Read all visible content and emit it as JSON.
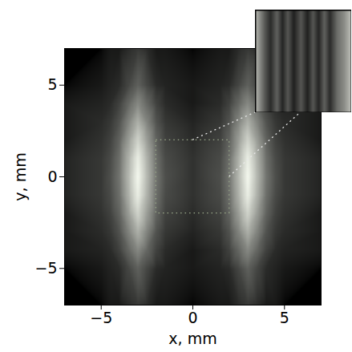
{
  "chart_data": {
    "type": "heatmap",
    "xlabel": "x, mm",
    "ylabel": "y, mm",
    "xlim": [
      -7,
      7
    ],
    "ylim": [
      -7,
      7
    ],
    "xticks": [
      -5,
      0,
      5
    ],
    "yticks": [
      -5,
      0,
      5
    ],
    "zlim": [
      0,
      1
    ],
    "x": [
      -7,
      -5,
      -4.5,
      -4,
      -3.5,
      -3,
      -2.5,
      -2,
      -1.5,
      0,
      1.5,
      2,
      2.5,
      3,
      3.5,
      4,
      4.5,
      5,
      7
    ],
    "y": [
      -7,
      -5,
      -4,
      -3,
      -2,
      -1,
      0,
      1,
      2,
      3,
      4,
      5,
      7
    ],
    "values": [
      [
        0.0,
        0.0,
        0.01,
        0.01,
        0.03,
        0.05,
        0.03,
        0.01,
        0.01,
        0.0,
        0.01,
        0.01,
        0.03,
        0.05,
        0.03,
        0.01,
        0.01,
        0.0,
        0.0
      ],
      [
        0.0,
        0.01,
        0.02,
        0.03,
        0.08,
        0.15,
        0.08,
        0.03,
        0.02,
        0.01,
        0.02,
        0.03,
        0.08,
        0.15,
        0.08,
        0.03,
        0.02,
        0.01,
        0.0
      ],
      [
        0.01,
        0.02,
        0.03,
        0.07,
        0.17,
        0.3,
        0.17,
        0.07,
        0.03,
        0.01,
        0.03,
        0.07,
        0.17,
        0.3,
        0.17,
        0.07,
        0.03,
        0.02,
        0.01
      ],
      [
        0.01,
        0.03,
        0.05,
        0.11,
        0.28,
        0.5,
        0.28,
        0.11,
        0.05,
        0.02,
        0.05,
        0.11,
        0.28,
        0.5,
        0.28,
        0.11,
        0.05,
        0.03,
        0.01
      ],
      [
        0.01,
        0.04,
        0.07,
        0.16,
        0.4,
        0.72,
        0.4,
        0.16,
        0.07,
        0.03,
        0.07,
        0.16,
        0.4,
        0.72,
        0.4,
        0.16,
        0.07,
        0.04,
        0.01
      ],
      [
        0.02,
        0.05,
        0.09,
        0.2,
        0.51,
        0.92,
        0.51,
        0.2,
        0.09,
        0.04,
        0.09,
        0.2,
        0.51,
        0.92,
        0.51,
        0.2,
        0.09,
        0.05,
        0.02
      ],
      [
        0.02,
        0.05,
        0.1,
        0.22,
        0.55,
        1.0,
        0.55,
        0.22,
        0.1,
        0.04,
        0.1,
        0.22,
        0.55,
        1.0,
        0.55,
        0.22,
        0.1,
        0.05,
        0.02
      ],
      [
        0.02,
        0.05,
        0.09,
        0.2,
        0.51,
        0.92,
        0.51,
        0.2,
        0.09,
        0.04,
        0.09,
        0.2,
        0.51,
        0.92,
        0.51,
        0.2,
        0.09,
        0.05,
        0.02
      ],
      [
        0.01,
        0.04,
        0.07,
        0.16,
        0.4,
        0.72,
        0.4,
        0.16,
        0.07,
        0.03,
        0.07,
        0.16,
        0.4,
        0.72,
        0.4,
        0.16,
        0.07,
        0.04,
        0.01
      ],
      [
        0.01,
        0.03,
        0.05,
        0.11,
        0.28,
        0.5,
        0.28,
        0.11,
        0.05,
        0.02,
        0.05,
        0.11,
        0.28,
        0.5,
        0.28,
        0.11,
        0.05,
        0.03,
        0.01
      ],
      [
        0.01,
        0.02,
        0.03,
        0.07,
        0.17,
        0.3,
        0.17,
        0.07,
        0.03,
        0.01,
        0.03,
        0.07,
        0.17,
        0.3,
        0.17,
        0.07,
        0.03,
        0.02,
        0.01
      ],
      [
        0.0,
        0.01,
        0.02,
        0.03,
        0.08,
        0.15,
        0.08,
        0.03,
        0.02,
        0.01,
        0.02,
        0.03,
        0.08,
        0.15,
        0.08,
        0.03,
        0.02,
        0.01,
        0.0
      ],
      [
        0.0,
        0.0,
        0.01,
        0.01,
        0.03,
        0.05,
        0.03,
        0.01,
        0.01,
        0.0,
        0.01,
        0.01,
        0.03,
        0.05,
        0.03,
        0.01,
        0.01,
        0.0,
        0.0
      ]
    ],
    "region": {
      "xlim": [
        -2,
        2
      ],
      "ylim": [
        -2,
        2
      ]
    },
    "inset": {
      "type": "heatmap",
      "tick_labels": false,
      "xlim": [
        -2,
        2
      ],
      "ylim": [
        -2,
        2
      ],
      "x": [
        -2,
        -1.6,
        -1.37,
        -1.1,
        -0.87,
        -0.65,
        -0.4,
        -0.1,
        0.17,
        0.4,
        0.63,
        0.87,
        1.1,
        1.4,
        1.7,
        2
      ],
      "values": [
        0.8,
        0.35,
        0.15,
        0.4,
        0.12,
        0.35,
        0.1,
        0.35,
        0.1,
        0.35,
        0.12,
        0.4,
        0.15,
        0.45,
        0.6,
        0.85
      ]
    }
  }
}
